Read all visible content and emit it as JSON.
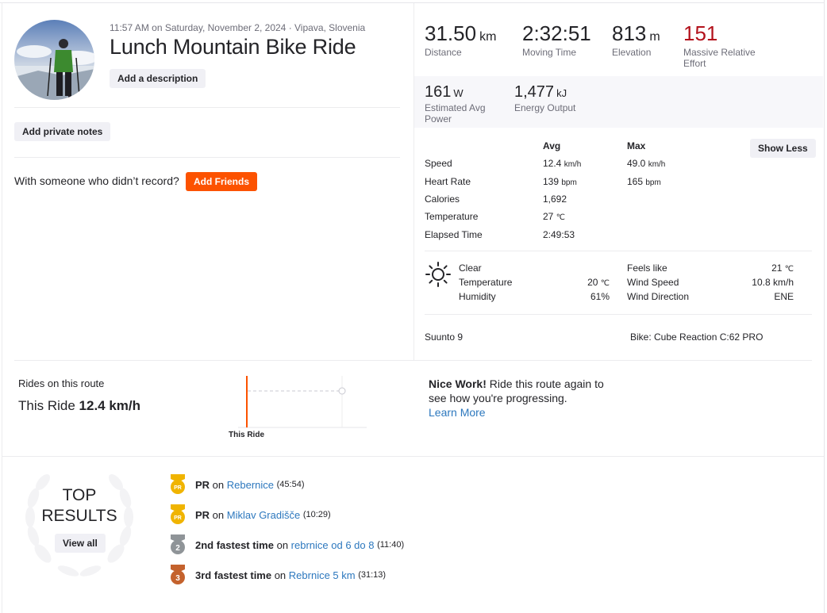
{
  "activity": {
    "meta": "11:57 AM on Saturday, November 2, 2024 · Vipava, Slovenia",
    "title": "Lunch Mountain Bike Ride",
    "add_description": "Add a description",
    "add_private_notes": "Add private notes",
    "with_someone": "With someone who didn’t record?",
    "add_friends": "Add Friends"
  },
  "stats": {
    "distance": {
      "value": "31.50",
      "unit": "km",
      "label": "Distance"
    },
    "moving_time": {
      "value": "2:32:51",
      "label": "Moving Time"
    },
    "elevation": {
      "value": "813",
      "unit": "m",
      "label": "Elevation"
    },
    "effort": {
      "value": "151",
      "label_1": "Massive Relative",
      "label_2": "Effort"
    },
    "power": {
      "value": "161",
      "unit": "W",
      "label_1": "Estimated Avg",
      "label_2": "Power"
    },
    "energy": {
      "value": "1,477",
      "unit": "kJ",
      "label": "Energy Output"
    }
  },
  "details": {
    "col_avg": "Avg",
    "col_max": "Max",
    "show_less": "Show Less",
    "rows": [
      {
        "label": "Speed",
        "avg": "12.4",
        "avg_unit": "km/h",
        "max": "49.0",
        "max_unit": "km/h"
      },
      {
        "label": "Heart Rate",
        "avg": "139",
        "avg_unit": "bpm",
        "max": "165",
        "max_unit": "bpm"
      },
      {
        "label": "Calories",
        "avg": "1,692",
        "avg_unit": "",
        "max": "",
        "max_unit": ""
      },
      {
        "label": "Temperature",
        "avg": "27",
        "avg_unit": "℃",
        "max": "",
        "max_unit": ""
      },
      {
        "label": "Elapsed Time",
        "avg": "2:49:53",
        "avg_unit": "",
        "max": "",
        "max_unit": ""
      }
    ]
  },
  "weather": {
    "condition": "Clear",
    "temperature_label": "Temperature",
    "temperature_value": "20",
    "temperature_unit": "℃",
    "humidity_label": "Humidity",
    "humidity_value": "61%",
    "feels_like_label": "Feels like",
    "feels_like_value": "21",
    "feels_like_unit": "℃",
    "wind_speed_label": "Wind Speed",
    "wind_speed_value": "10.8 km/h",
    "wind_direction_label": "Wind Direction",
    "wind_direction_value": "ENE"
  },
  "gear": {
    "device": "Suunto 9",
    "bike": "Bike: Cube Reaction C:62 PRO"
  },
  "route": {
    "label": "Rides on this route",
    "this_ride_label": "This Ride",
    "this_ride_value": "12.4 km/h",
    "chart_marker": "This Ride",
    "nice_bold": "Nice Work!",
    "nice_text": " Ride this route again to see how you're progressing.",
    "learn_more": "Learn More"
  },
  "top_results": {
    "title_1": "TOP",
    "title_2": "RESULTS",
    "view_all": "View all",
    "items": [
      {
        "medal": "PR",
        "medal_color": "#f0b400",
        "bold": "PR",
        "on": " on ",
        "segment": "Rebernice",
        "time": "(45:54)"
      },
      {
        "medal": "PR",
        "medal_color": "#f0b400",
        "bold": "PR",
        "on": " on ",
        "segment": "Miklav Gradišče",
        "time": "(10:29)"
      },
      {
        "medal": "2",
        "medal_color": "#8f9498",
        "bold": "2nd fastest time",
        "on": " on ",
        "segment": "rebrnice od 6 do 8",
        "time": "(11:40)"
      },
      {
        "medal": "3",
        "medal_color": "#c4622d",
        "bold": "3rd fastest time",
        "on": " on ",
        "segment": "Rebrnice 5 km",
        "time": "(31:13)"
      }
    ]
  },
  "colors": {
    "brand_orange": "#fc5200",
    "effort_red": "#b3121c",
    "link_blue": "#2d78be"
  }
}
